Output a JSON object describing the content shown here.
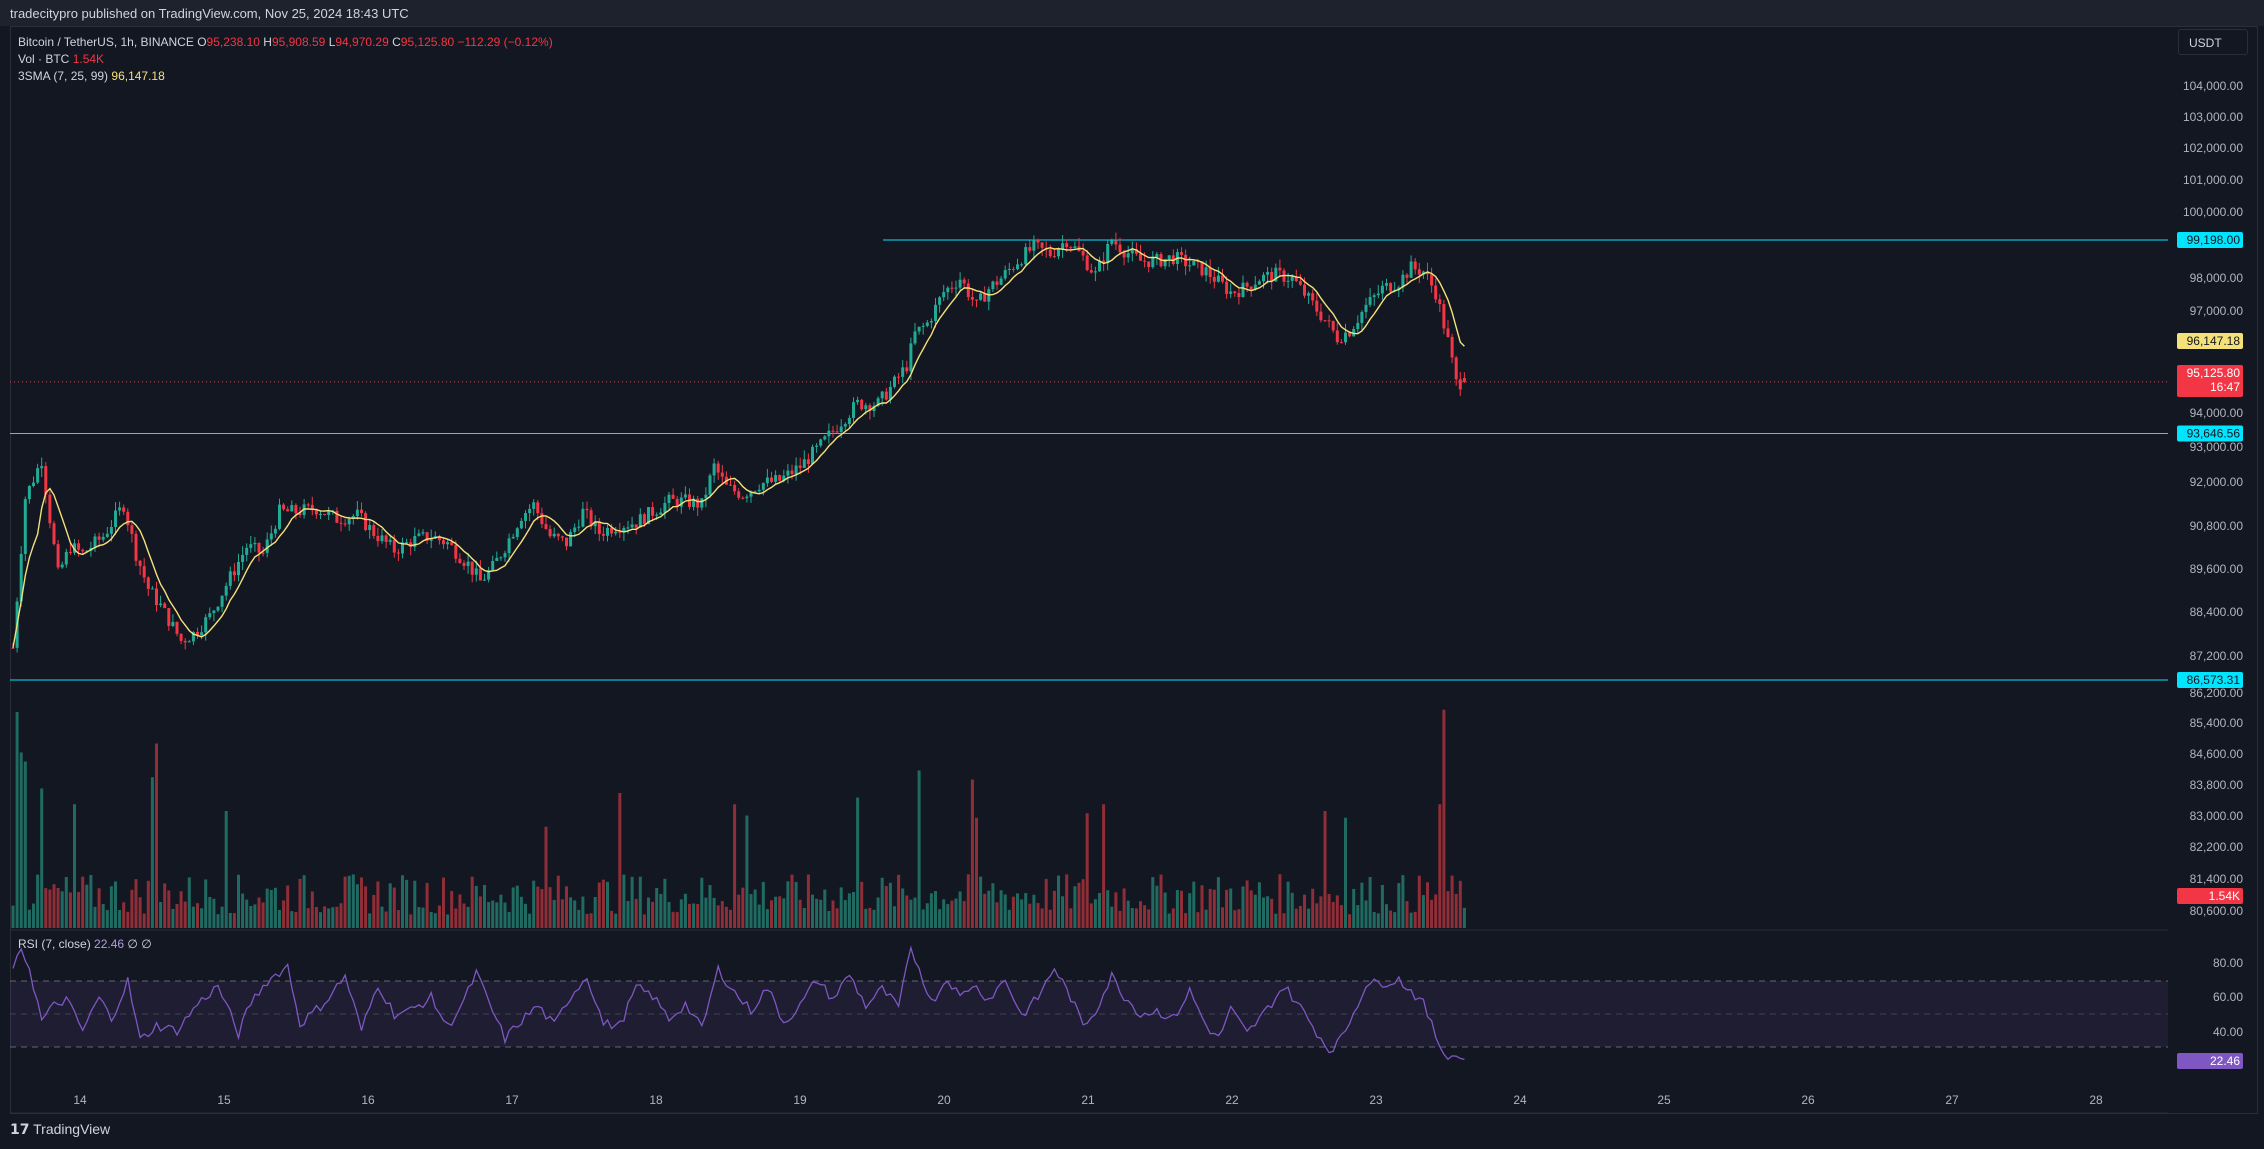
{
  "header": {
    "publish_line": "tradecitypro published on TradingView.com, Nov 25, 2024 18:43 UTC"
  },
  "legend": {
    "symbol": "Bitcoin / TetherUS, 1h, BINANCE",
    "o_label": "O",
    "o_value": "95,238.10",
    "h_label": "H",
    "h_value": "95,908.59",
    "l_label": "L",
    "l_value": "94,970.29",
    "c_label": "C",
    "c_value": "95,125.80",
    "change": "−112.29 (−0.12%)",
    "vol_label": "Vol · BTC",
    "vol_value": "1.54K",
    "sma_label": "3SMA (7, 25, 99)",
    "sma_value": "96,147.18"
  },
  "currency_button": "USDT",
  "rsi_legend": {
    "label": "RSI (7, close)",
    "value": "22.46",
    "extra1": "∅",
    "extra2": "∅"
  },
  "brand": {
    "icon": "tradingview-logo-icon",
    "name": "TradingView"
  },
  "colors": {
    "up": "#22ab94",
    "down": "#f23645",
    "up_vol": "#1f6b62",
    "down_vol": "#8f2e36",
    "sma": "#f5e17a",
    "hline": "#00e5ff",
    "rsi": "#7e57c2",
    "bg": "#131722"
  },
  "chart_data": {
    "type": "candlestick",
    "title": "Bitcoin / TetherUS, 1h, BINANCE",
    "x_tick_labels": [
      "14",
      "15",
      "16",
      "17",
      "18",
      "19",
      "20",
      "21",
      "22",
      "23",
      "24",
      "25",
      "26",
      "27",
      "28"
    ],
    "price_axis_labels": [
      "104,000.00",
      "103,000.00",
      "102,000.00",
      "101,000.00",
      "100,000.00",
      "98,000.00",
      "97,000.00",
      "94,000.00",
      "93,000.00",
      "92,000.00",
      "90,800.00",
      "89,600.00",
      "88,400.00",
      "87,200.00",
      "86,200.00",
      "85,400.00",
      "84,600.00",
      "83,800.00",
      "83,000.00",
      "82,200.00",
      "81,400.00",
      "80,600.00"
    ],
    "horizontal_levels": [
      {
        "value": 99198.0,
        "label": "99,198.00"
      },
      {
        "value": 93646.56,
        "label": "93,646.56"
      },
      {
        "value": 86573.31,
        "label": "86,573.31"
      }
    ],
    "last_price": {
      "value": 95125.8,
      "label": "95,125.80",
      "countdown": "16:47"
    },
    "sma_last": {
      "value": 96147.18,
      "label": "96,147.18"
    },
    "volume_last": {
      "label": "1.54K"
    },
    "rsi_axis_labels": [
      "80.00",
      "60.00",
      "40.00"
    ],
    "rsi_last": {
      "value": 22.46,
      "label": "22.46"
    },
    "rsi_bands": [
      70,
      50,
      30
    ],
    "price_anchors": [
      [
        0,
        87500
      ],
      [
        3,
        91800
      ],
      [
        7,
        92900
      ],
      [
        9,
        91200
      ],
      [
        11,
        89600
      ],
      [
        14,
        90400
      ],
      [
        17,
        90200
      ],
      [
        22,
        90700
      ],
      [
        27,
        91600
      ],
      [
        30,
        90200
      ],
      [
        33,
        89200
      ],
      [
        36,
        88700
      ],
      [
        39,
        88100
      ],
      [
        41,
        87700
      ],
      [
        44,
        87900
      ],
      [
        48,
        88400
      ],
      [
        52,
        89300
      ],
      [
        57,
        90400
      ],
      [
        61,
        90200
      ],
      [
        65,
        91400
      ],
      [
        69,
        91400
      ],
      [
        74,
        91500
      ],
      [
        79,
        91200
      ],
      [
        84,
        91300
      ],
      [
        88,
        90800
      ],
      [
        93,
        90300
      ],
      [
        98,
        90600
      ],
      [
        102,
        90700
      ],
      [
        106,
        90500
      ],
      [
        111,
        89900
      ],
      [
        114,
        89400
      ],
      [
        117,
        89800
      ],
      [
        120,
        90400
      ],
      [
        124,
        91300
      ],
      [
        127,
        91600
      ],
      [
        131,
        90700
      ],
      [
        135,
        90500
      ],
      [
        139,
        91400
      ],
      [
        143,
        90800
      ],
      [
        147,
        91000
      ],
      [
        152,
        91100
      ],
      [
        156,
        91400
      ],
      [
        160,
        91700
      ],
      [
        164,
        91700
      ],
      [
        168,
        91600
      ],
      [
        171,
        92700
      ],
      [
        174,
        92100
      ],
      [
        178,
        91900
      ],
      [
        182,
        92200
      ],
      [
        187,
        92300
      ],
      [
        192,
        92700
      ],
      [
        197,
        93300
      ],
      [
        202,
        94000
      ],
      [
        206,
        94500
      ],
      [
        211,
        94500
      ],
      [
        215,
        95100
      ],
      [
        218,
        95600
      ],
      [
        220,
        96500
      ],
      [
        223,
        96800
      ],
      [
        227,
        97700
      ],
      [
        231,
        98100
      ],
      [
        235,
        97300
      ],
      [
        238,
        97800
      ],
      [
        241,
        98100
      ],
      [
        245,
        98600
      ],
      [
        249,
        99000
      ],
      [
        253,
        98800
      ],
      [
        257,
        99200
      ],
      [
        261,
        98700
      ],
      [
        264,
        98200
      ],
      [
        268,
        99200
      ],
      [
        271,
        98900
      ],
      [
        275,
        98600
      ],
      [
        279,
        98600
      ],
      [
        283,
        98700
      ],
      [
        287,
        98500
      ],
      [
        291,
        98300
      ],
      [
        294,
        98000
      ],
      [
        297,
        97700
      ],
      [
        300,
        97800
      ],
      [
        304,
        98100
      ],
      [
        308,
        98200
      ],
      [
        312,
        98100
      ],
      [
        316,
        97500
      ],
      [
        320,
        96900
      ],
      [
        323,
        96400
      ],
      [
        326,
        96600
      ],
      [
        330,
        97300
      ],
      [
        334,
        97800
      ],
      [
        338,
        98000
      ],
      [
        341,
        98400
      ],
      [
        344,
        98300
      ],
      [
        347,
        97700
      ],
      [
        350,
        96300
      ],
      [
        352,
        95100
      ],
      [
        354,
        95125.8
      ]
    ],
    "volume_spikes": [
      [
        1,
        0.96
      ],
      [
        2,
        0.78
      ],
      [
        3,
        0.74
      ],
      [
        7,
        0.62
      ],
      [
        15,
        0.55
      ],
      [
        34,
        0.67
      ],
      [
        35,
        0.82
      ],
      [
        52,
        0.52
      ],
      [
        130,
        0.45
      ],
      [
        148,
        0.6
      ],
      [
        176,
        0.55
      ],
      [
        179,
        0.5
      ],
      [
        206,
        0.58
      ],
      [
        221,
        0.7
      ],
      [
        234,
        0.66
      ],
      [
        235,
        0.49
      ],
      [
        262,
        0.51
      ],
      [
        266,
        0.55
      ],
      [
        320,
        0.52
      ],
      [
        325,
        0.49
      ],
      [
        348,
        0.55
      ],
      [
        349,
        0.97
      ]
    ],
    "rsi_anchors": [
      [
        0,
        75
      ],
      [
        2,
        90
      ],
      [
        4,
        78
      ],
      [
        7,
        46
      ],
      [
        10,
        55
      ],
      [
        13,
        59
      ],
      [
        17,
        40
      ],
      [
        21,
        60
      ],
      [
        24,
        47
      ],
      [
        28,
        70
      ],
      [
        31,
        34
      ],
      [
        35,
        43
      ],
      [
        40,
        40
      ],
      [
        45,
        56
      ],
      [
        50,
        67
      ],
      [
        55,
        38
      ],
      [
        58,
        57
      ],
      [
        62,
        70
      ],
      [
        67,
        79
      ],
      [
        70,
        44
      ],
      [
        76,
        57
      ],
      [
        81,
        73
      ],
      [
        85,
        40
      ],
      [
        89,
        68
      ],
      [
        93,
        50
      ],
      [
        97,
        52
      ],
      [
        102,
        60
      ],
      [
        106,
        42
      ],
      [
        110,
        58
      ],
      [
        113,
        75
      ],
      [
        116,
        57
      ],
      [
        120,
        35
      ],
      [
        124,
        46
      ],
      [
        128,
        55
      ],
      [
        132,
        43
      ],
      [
        136,
        61
      ],
      [
        140,
        73
      ],
      [
        144,
        44
      ],
      [
        148,
        43
      ],
      [
        152,
        66
      ],
      [
        156,
        61
      ],
      [
        160,
        47
      ],
      [
        164,
        56
      ],
      [
        168,
        41
      ],
      [
        172,
        77
      ],
      [
        176,
        63
      ],
      [
        180,
        52
      ],
      [
        184,
        66
      ],
      [
        188,
        45
      ],
      [
        192,
        55
      ],
      [
        196,
        71
      ],
      [
        200,
        59
      ],
      [
        204,
        74
      ],
      [
        208,
        55
      ],
      [
        212,
        65
      ],
      [
        216,
        54
      ],
      [
        219,
        89
      ],
      [
        221,
        78
      ],
      [
        224,
        57
      ],
      [
        228,
        72
      ],
      [
        231,
        60
      ],
      [
        234,
        68
      ],
      [
        238,
        59
      ],
      [
        242,
        71
      ],
      [
        246,
        49
      ],
      [
        250,
        60
      ],
      [
        254,
        78
      ],
      [
        258,
        60
      ],
      [
        261,
        43
      ],
      [
        264,
        52
      ],
      [
        268,
        73
      ],
      [
        271,
        61
      ],
      [
        275,
        50
      ],
      [
        279,
        52
      ],
      [
        283,
        47
      ],
      [
        287,
        64
      ],
      [
        291,
        43
      ],
      [
        294,
        35
      ],
      [
        297,
        53
      ],
      [
        301,
        38
      ],
      [
        305,
        50
      ],
      [
        310,
        67
      ],
      [
        314,
        54
      ],
      [
        318,
        39
      ],
      [
        321,
        28
      ],
      [
        324,
        35
      ],
      [
        327,
        51
      ],
      [
        330,
        68
      ],
      [
        334,
        69
      ],
      [
        338,
        71
      ],
      [
        341,
        64
      ],
      [
        344,
        56
      ],
      [
        347,
        37
      ],
      [
        349,
        26
      ],
      [
        351,
        25
      ],
      [
        354,
        22.46
      ]
    ]
  }
}
